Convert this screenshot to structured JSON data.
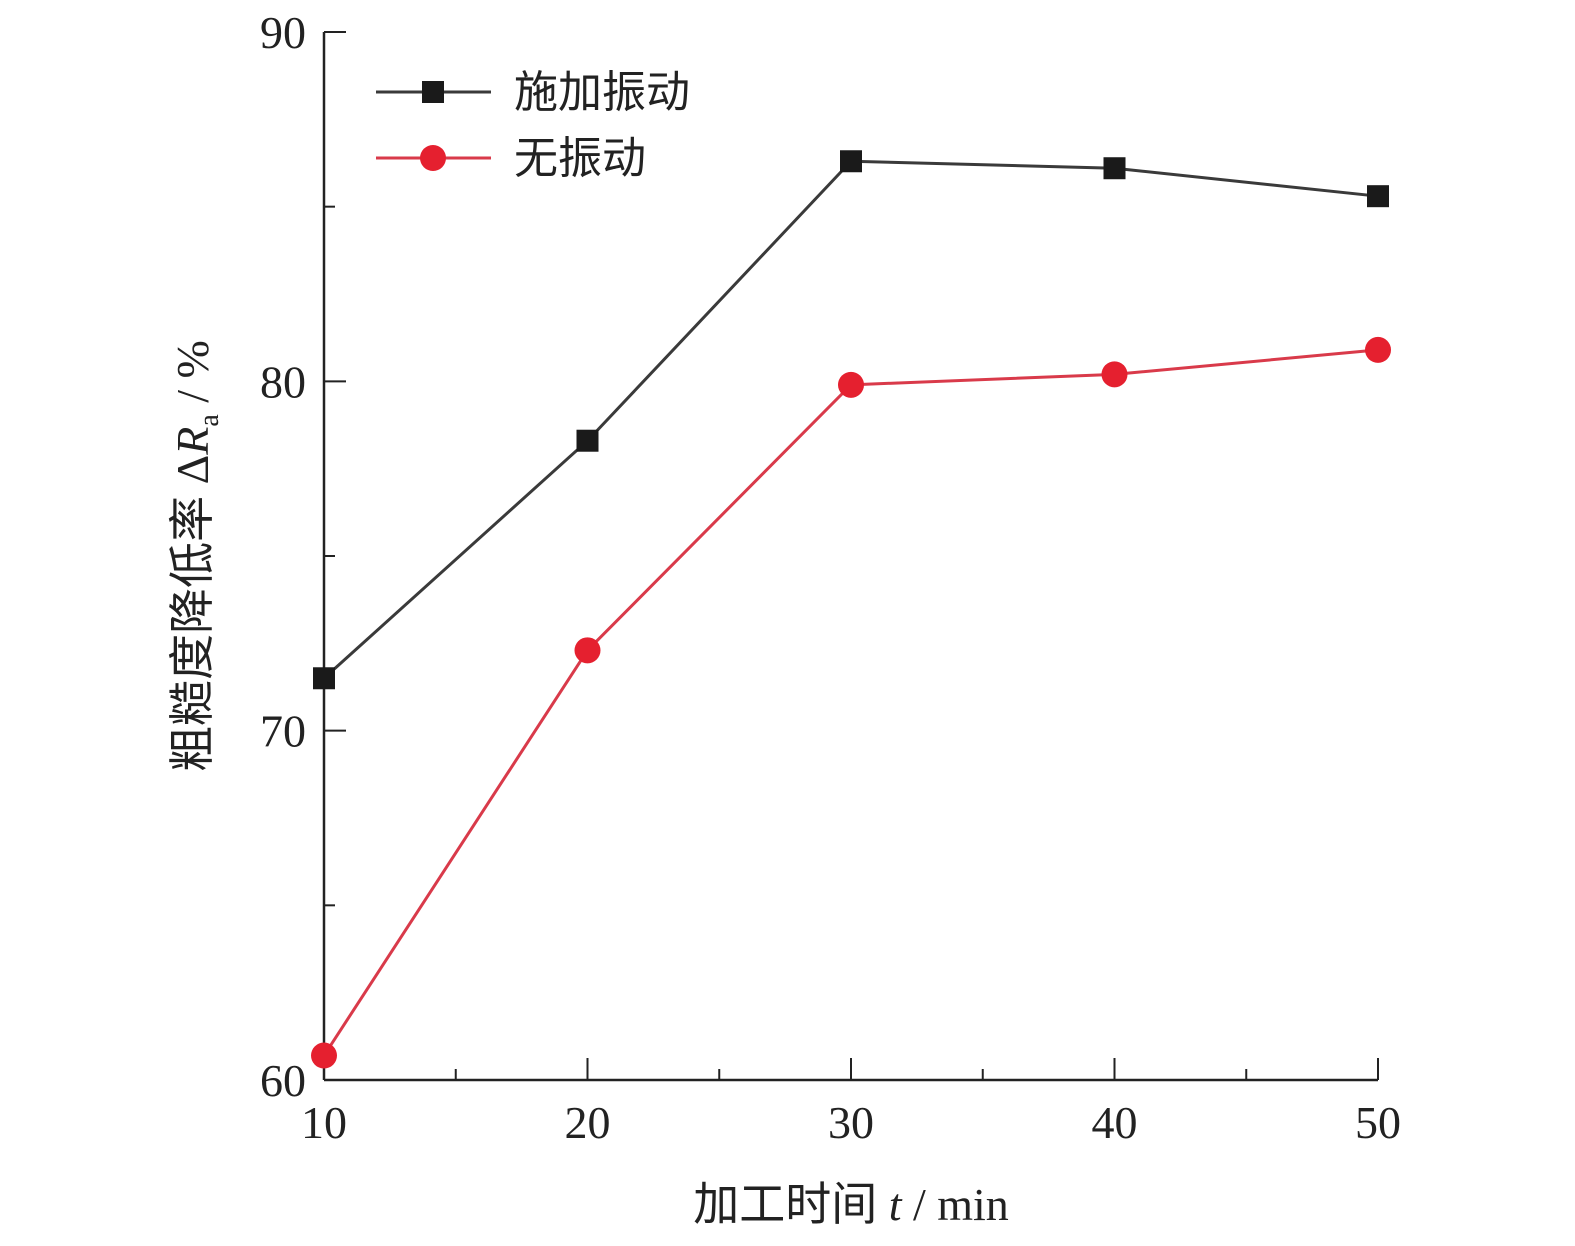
{
  "chart_data": {
    "type": "line",
    "x": [
      10,
      20,
      30,
      40,
      50
    ],
    "xticks": [
      10,
      20,
      30,
      40,
      50
    ],
    "yticks": [
      60,
      70,
      80,
      90
    ],
    "xlim": [
      10,
      50
    ],
    "ylim": [
      60,
      90
    ],
    "x_minor_step": 5,
    "y_minor_step": 5,
    "xlabel": {
      "main": "加工时间 ",
      "var": "t",
      "unit": " / min"
    },
    "ylabel": {
      "main": "粗糙度降低率 ",
      "delta": "Δ",
      "var": "R",
      "sub": "a",
      "unit": " / %"
    },
    "legend_position": "top-left",
    "grid": false,
    "series": [
      {
        "name": "施加振动",
        "values": [
          71.5,
          78.3,
          86.3,
          86.1,
          85.3
        ],
        "color": "#3a3a3a",
        "marker_color": "#1a1a1a",
        "marker": "square"
      },
      {
        "name": "无振动",
        "values": [
          60.7,
          72.3,
          79.9,
          80.2,
          80.9
        ],
        "color": "#d93a4a",
        "marker_color": "#e5202f",
        "marker": "circle"
      }
    ]
  }
}
